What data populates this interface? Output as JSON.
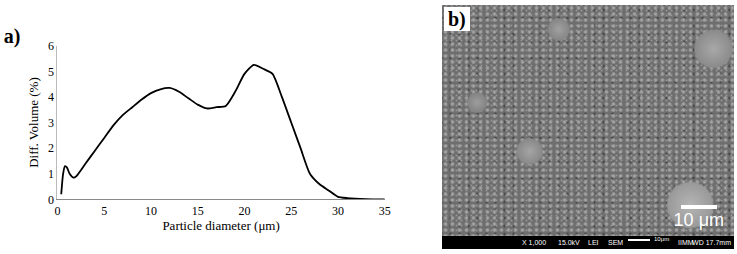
{
  "chart_data": {
    "type": "line",
    "title": "a)",
    "x_label": "Particle diameter (μm)",
    "y_label": "Diff. Volume (%)",
    "x": [
      0.4,
      0.6,
      0.8,
      1.0,
      1.3,
      1.7,
      2,
      3,
      4,
      5,
      6,
      7,
      8,
      9,
      10,
      11,
      12,
      13,
      14,
      15,
      16,
      17,
      18,
      19,
      20,
      21,
      22,
      23,
      24,
      25,
      26,
      27,
      28,
      29,
      30,
      31,
      33,
      35
    ],
    "values": [
      0.2,
      1.0,
      1.3,
      1.25,
      1.0,
      0.85,
      0.9,
      1.4,
      1.9,
      2.4,
      2.9,
      3.3,
      3.6,
      3.9,
      4.15,
      4.3,
      4.35,
      4.2,
      3.95,
      3.7,
      3.55,
      3.6,
      3.65,
      4.2,
      4.9,
      5.25,
      5.1,
      4.9,
      4.0,
      3.0,
      2.0,
      1.0,
      0.6,
      0.35,
      0.1,
      0.05,
      0.01,
      0
    ],
    "color": "#000000",
    "xlim": [
      0,
      35
    ],
    "xticks": [
      0,
      5,
      10,
      15,
      20,
      25,
      30,
      35
    ],
    "ylim": [
      0,
      6
    ],
    "yticks": [
      0,
      1,
      2,
      3,
      4,
      5,
      6
    ],
    "grid": false
  },
  "micrograph": {
    "label": "b)",
    "scale_bar": "10 μm",
    "footer": [
      "X 1,000",
      "15.0kV",
      "LEI",
      "SEM",
      "WD 17.7mm"
    ],
    "footer_scale": "10μm",
    "footer_mark": "IIMM"
  }
}
